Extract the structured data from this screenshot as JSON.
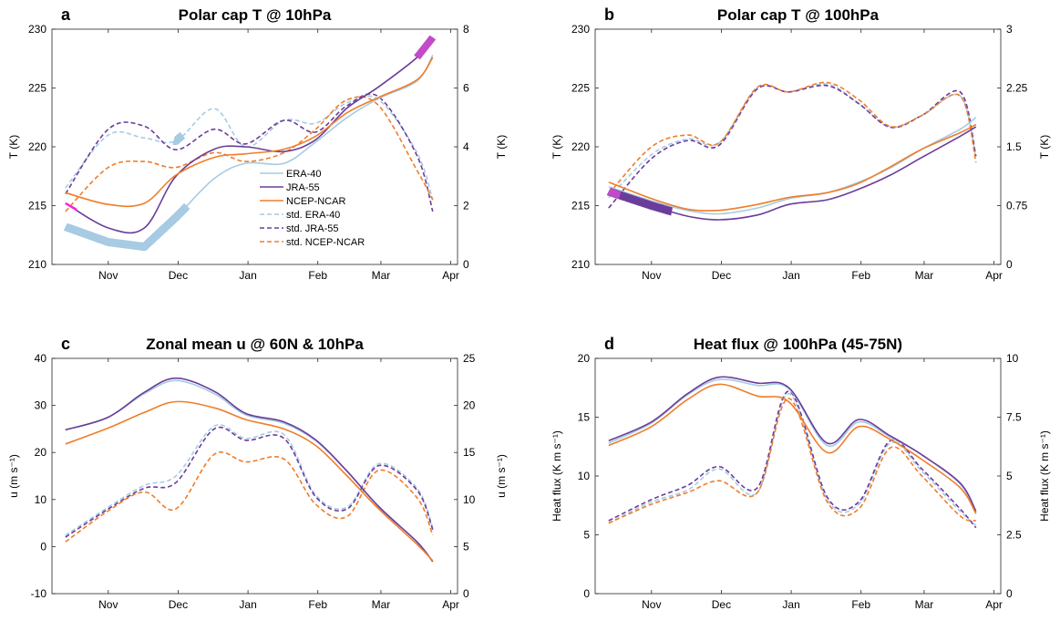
{
  "colors": {
    "era40": "#a6cbe2",
    "jra55": "#6a3d9a",
    "ncep": "#f07d2a",
    "highlight_thin": "#ff22dd",
    "highlight_thick": "#c24bc7"
  },
  "x_ticks": [
    "Nov",
    "Dec",
    "Jan",
    "Feb",
    "Mar",
    "Apr"
  ],
  "legend": [
    "ERA-40",
    "JRA-55",
    "NCEP-NCAR",
    "std. ERA-40",
    "std. JRA-55",
    "std. NCEP-NCAR"
  ],
  "chart_data": [
    {
      "type": "line",
      "panel_label": "a",
      "title": "Polar cap T @ 10hPa",
      "ylabel": "T (K)",
      "ylabel_right": "T (K)",
      "ylim": [
        210,
        230
      ],
      "ylim_right": [
        0,
        8
      ],
      "yticks": [
        "210",
        "215",
        "220",
        "225",
        "230"
      ],
      "yticks_right": [
        "0",
        "2",
        "4",
        "6",
        "8"
      ],
      "x": [
        "Oct 27",
        "Nov 15",
        "Dec 1",
        "Dec 15",
        "Jan 1",
        "Jan 15",
        "Feb 1",
        "Feb 15",
        "Mar 1",
        "Mar 15",
        "Apr 1",
        "Apr 8"
      ],
      "series": [
        {
          "name": "ERA-40",
          "axis": "left",
          "style": "solid",
          "values": [
            213.2,
            211.9,
            211.5,
            214.0,
            217.3,
            218.6,
            218.6,
            220.4,
            222.5,
            224.1,
            225.6,
            227.8
          ]
        },
        {
          "name": "JRA-55",
          "axis": "left",
          "style": "solid",
          "values": [
            215.2,
            213.1,
            213.1,
            217.5,
            219.8,
            220.0,
            219.6,
            220.6,
            223.3,
            225.1,
            227.6,
            229.3
          ]
        },
        {
          "name": "NCEP-NCAR",
          "axis": "left",
          "style": "solid",
          "values": [
            216.1,
            215.1,
            215.2,
            217.6,
            219.1,
            219.4,
            219.8,
            220.9,
            222.9,
            224.2,
            225.7,
            227.6
          ]
        },
        {
          "name": "std. ERA-40",
          "axis": "right",
          "style": "dashed",
          "values": [
            2.6,
            4.4,
            4.3,
            4.2,
            5.3,
            4.0,
            4.9,
            4.8,
            5.5,
            5.6,
            3.8,
            2.2
          ]
        },
        {
          "name": "std. JRA-55",
          "axis": "right",
          "style": "dashed",
          "values": [
            2.4,
            4.6,
            4.7,
            3.9,
            4.6,
            4.1,
            4.9,
            4.5,
            5.4,
            5.7,
            3.7,
            1.8
          ]
        },
        {
          "name": "std. NCEP-NCAR",
          "axis": "right",
          "style": "dashed",
          "values": [
            1.8,
            3.3,
            3.5,
            3.3,
            3.8,
            3.5,
            3.8,
            4.6,
            5.6,
            5.4,
            3.2,
            2.2
          ]
        }
      ],
      "highlights": [
        {
          "series": "ERA-40",
          "x_start": "Oct 27",
          "x_end": "Dec 20",
          "style": "thick"
        },
        {
          "series": "std. ERA-40",
          "x_start": "Dec 14",
          "x_end": "Dec 18",
          "style": "thick"
        },
        {
          "series": "JRA-55",
          "x_start": "Oct 27",
          "x_end": "Nov 1",
          "style": "thin-magenta"
        },
        {
          "series": "JRA-55",
          "x_start": "Apr 1",
          "x_end": "Apr 8",
          "style": "thick-magenta"
        }
      ]
    },
    {
      "type": "line",
      "panel_label": "b",
      "title": "Polar cap T @ 100hPa",
      "ylabel": "T (K)",
      "ylabel_right": "T (K)",
      "ylim": [
        210,
        230
      ],
      "ylim_right": [
        0,
        3
      ],
      "yticks": [
        "210",
        "215",
        "220",
        "225",
        "230"
      ],
      "yticks_right": [
        "0",
        "0.75",
        "1.5",
        "2.25",
        "3"
      ],
      "x": [
        "Oct 27",
        "Nov 15",
        "Dec 1",
        "Dec 15",
        "Jan 1",
        "Jan 15",
        "Feb 1",
        "Feb 15",
        "Mar 1",
        "Mar 15",
        "Apr 1",
        "Apr 8"
      ],
      "series": [
        {
          "name": "ERA-40",
          "axis": "left",
          "style": "solid",
          "values": [
            216.6,
            215.4,
            214.6,
            214.3,
            214.8,
            215.6,
            216.1,
            217.0,
            218.2,
            219.8,
            221.5,
            222.5
          ]
        },
        {
          "name": "JRA-55",
          "axis": "left",
          "style": "solid",
          "values": [
            216.2,
            215.0,
            214.1,
            213.8,
            214.2,
            215.1,
            215.5,
            216.4,
            217.6,
            219.1,
            220.9,
            221.7
          ]
        },
        {
          "name": "NCEP-NCAR",
          "axis": "left",
          "style": "solid",
          "values": [
            217.0,
            215.6,
            214.7,
            214.6,
            215.1,
            215.7,
            216.1,
            216.9,
            218.3,
            219.8,
            221.2,
            221.9
          ]
        },
        {
          "name": "std. ERA-40",
          "axis": "right",
          "style": "dashed",
          "values": [
            0.85,
            1.4,
            1.6,
            1.55,
            2.25,
            2.2,
            2.3,
            2.05,
            1.75,
            1.9,
            2.15,
            1.35
          ]
        },
        {
          "name": "std. JRA-55",
          "axis": "right",
          "style": "dashed",
          "values": [
            0.72,
            1.35,
            1.58,
            1.52,
            2.24,
            2.2,
            2.28,
            2.05,
            1.75,
            1.9,
            2.2,
            1.38
          ]
        },
        {
          "name": "std. NCEP-NCAR",
          "axis": "right",
          "style": "dashed",
          "values": [
            0.9,
            1.5,
            1.65,
            1.55,
            2.26,
            2.2,
            2.32,
            2.1,
            1.76,
            1.9,
            2.15,
            1.3
          ]
        }
      ],
      "highlights": [
        {
          "series": "JRA-55",
          "x_start": "Oct 27",
          "x_end": "Nov 24",
          "style": "thick"
        },
        {
          "series": "JRA-55",
          "x_start": "Oct 27",
          "x_end": "Nov 1",
          "style": "thick-magenta"
        }
      ]
    },
    {
      "type": "line",
      "panel_label": "c",
      "title": "Zonal mean u @ 60N & 10hPa",
      "ylabel": "u (m s⁻¹)",
      "ylabel_right": "u (m s⁻¹)",
      "ylim": [
        -10,
        40
      ],
      "ylim_right": [
        0,
        25
      ],
      "yticks": [
        "-10",
        "0",
        "10",
        "20",
        "30",
        "40"
      ],
      "yticks_right": [
        "0",
        "5",
        "10",
        "15",
        "20",
        "25"
      ],
      "x": [
        "Oct 27",
        "Nov 15",
        "Dec 1",
        "Dec 15",
        "Jan 1",
        "Jan 15",
        "Feb 1",
        "Feb 15",
        "Mar 1",
        "Mar 15",
        "Apr 1",
        "Apr 8"
      ],
      "series": [
        {
          "name": "ERA-40",
          "axis": "left",
          "style": "solid",
          "values": [
            24.8,
            27.5,
            32.5,
            35.3,
            32.5,
            28.0,
            26.2,
            22.5,
            16.0,
            8.5,
            1.0,
            -3.2
          ]
        },
        {
          "name": "JRA-55",
          "axis": "left",
          "style": "solid",
          "values": [
            24.8,
            27.5,
            32.8,
            35.8,
            33.0,
            28.3,
            26.5,
            22.7,
            16.0,
            8.5,
            1.0,
            -3.2
          ]
        },
        {
          "name": "NCEP-NCAR",
          "axis": "left",
          "style": "solid",
          "values": [
            21.8,
            25.2,
            28.5,
            30.8,
            29.5,
            27.0,
            25.0,
            21.5,
            15.0,
            8.0,
            0.5,
            -3.0
          ]
        },
        {
          "name": "std. ERA-40",
          "axis": "right",
          "style": "dashed",
          "values": [
            6.2,
            9.2,
            11.5,
            12.5,
            17.8,
            16.5,
            16.9,
            10.5,
            9.2,
            13.8,
            11.2,
            7.0
          ]
        },
        {
          "name": "std. JRA-55",
          "axis": "right",
          "style": "dashed",
          "values": [
            6.0,
            9.0,
            11.2,
            11.8,
            17.5,
            16.3,
            16.5,
            10.3,
            9.0,
            13.6,
            11.0,
            6.8
          ]
        },
        {
          "name": "std. NCEP-NCAR",
          "axis": "right",
          "style": "dashed",
          "values": [
            5.5,
            8.8,
            10.8,
            9.0,
            14.8,
            14.0,
            14.3,
            9.5,
            8.2,
            13.1,
            10.2,
            6.2
          ]
        }
      ]
    },
    {
      "type": "line",
      "panel_label": "d",
      "title": "Heat flux @ 100hPa (45-75N)",
      "ylabel": "Heat flux (K m s⁻¹)",
      "ylabel_right": "Heat flux (K m s⁻¹)",
      "ylim": [
        0,
        20
      ],
      "ylim_right": [
        0,
        10
      ],
      "yticks": [
        "0",
        "5",
        "10",
        "15",
        "20"
      ],
      "yticks_right": [
        "0",
        "2.5",
        "5",
        "7.5",
        "10"
      ],
      "x": [
        "Oct 27",
        "Nov 15",
        "Dec 1",
        "Dec 15",
        "Jan 1",
        "Jan 15",
        "Feb 1",
        "Feb 15",
        "Mar 1",
        "Mar 15",
        "Apr 1",
        "Apr 8"
      ],
      "series": [
        {
          "name": "ERA-40",
          "axis": "left",
          "style": "solid",
          "values": [
            12.8,
            14.5,
            16.9,
            18.2,
            17.7,
            17.4,
            12.6,
            14.6,
            13.3,
            11.8,
            9.3,
            6.9
          ]
        },
        {
          "name": "JRA-55",
          "axis": "left",
          "style": "solid",
          "values": [
            13.0,
            14.6,
            17.0,
            18.4,
            17.9,
            17.5,
            12.8,
            14.8,
            13.4,
            11.8,
            9.4,
            7.0
          ]
        },
        {
          "name": "NCEP-NCAR",
          "axis": "left",
          "style": "solid",
          "values": [
            12.6,
            14.2,
            16.5,
            17.8,
            16.8,
            16.3,
            12.0,
            14.2,
            13.1,
            11.4,
            9.0,
            6.8
          ]
        },
        {
          "name": "std. ERA-40",
          "axis": "right",
          "style": "dashed",
          "values": [
            3.0,
            3.9,
            4.4,
            5.3,
            4.3,
            8.5,
            4.0,
            3.8,
            6.4,
            5.2,
            3.5,
            2.9
          ]
        },
        {
          "name": "std. JRA-55",
          "axis": "right",
          "style": "dashed",
          "values": [
            3.1,
            4.0,
            4.6,
            5.4,
            4.5,
            8.6,
            4.1,
            3.9,
            6.5,
            5.3,
            3.6,
            2.8
          ]
        },
        {
          "name": "std. NCEP-NCAR",
          "axis": "right",
          "style": "dashed",
          "values": [
            3.0,
            3.8,
            4.3,
            4.8,
            4.3,
            8.3,
            3.9,
            3.6,
            6.2,
            5.0,
            3.3,
            3.1
          ]
        }
      ]
    }
  ]
}
